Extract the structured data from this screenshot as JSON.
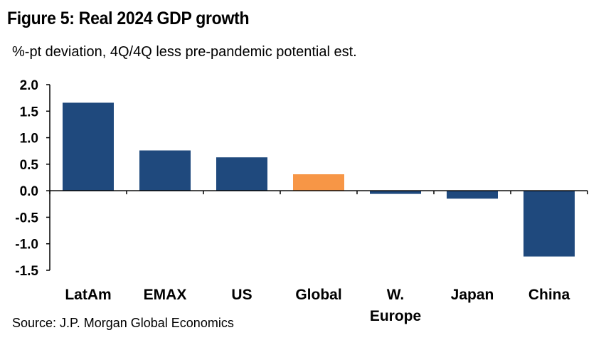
{
  "title": "Figure 5: Real 2024 GDP growth",
  "subtitle": "%-pt deviation, 4Q/4Q less pre-pandemic potential est.",
  "source": "Source: J.P. Morgan Global Economics",
  "chart_data": {
    "type": "bar",
    "title": "Figure 5: Real 2024 GDP growth",
    "subtitle": "%-pt deviation, 4Q/4Q less pre-pandemic potential est.",
    "categories": [
      "LatAm",
      "EMAX",
      "US",
      "Global",
      "W. Europe",
      "Japan",
      "China"
    ],
    "category_lines": [
      [
        "LatAm"
      ],
      [
        "EMAX"
      ],
      [
        "US"
      ],
      [
        "Global"
      ],
      [
        "W.",
        "Europe"
      ],
      [
        "Japan"
      ],
      [
        "China"
      ]
    ],
    "values": [
      1.66,
      0.76,
      0.63,
      0.31,
      -0.06,
      -0.15,
      -1.24
    ],
    "ylim": [
      -1.5,
      2.0
    ],
    "yticks": [
      "2.0",
      "1.5",
      "1.0",
      "0.5",
      "0.0",
      "-0.5",
      "-1.0",
      "-1.5"
    ],
    "colors": [
      "#1F497D",
      "#1F497D",
      "#1F497D",
      "#F79646",
      "#1F497D",
      "#1F497D",
      "#1F497D"
    ],
    "grid": false,
    "legend": "none"
  }
}
